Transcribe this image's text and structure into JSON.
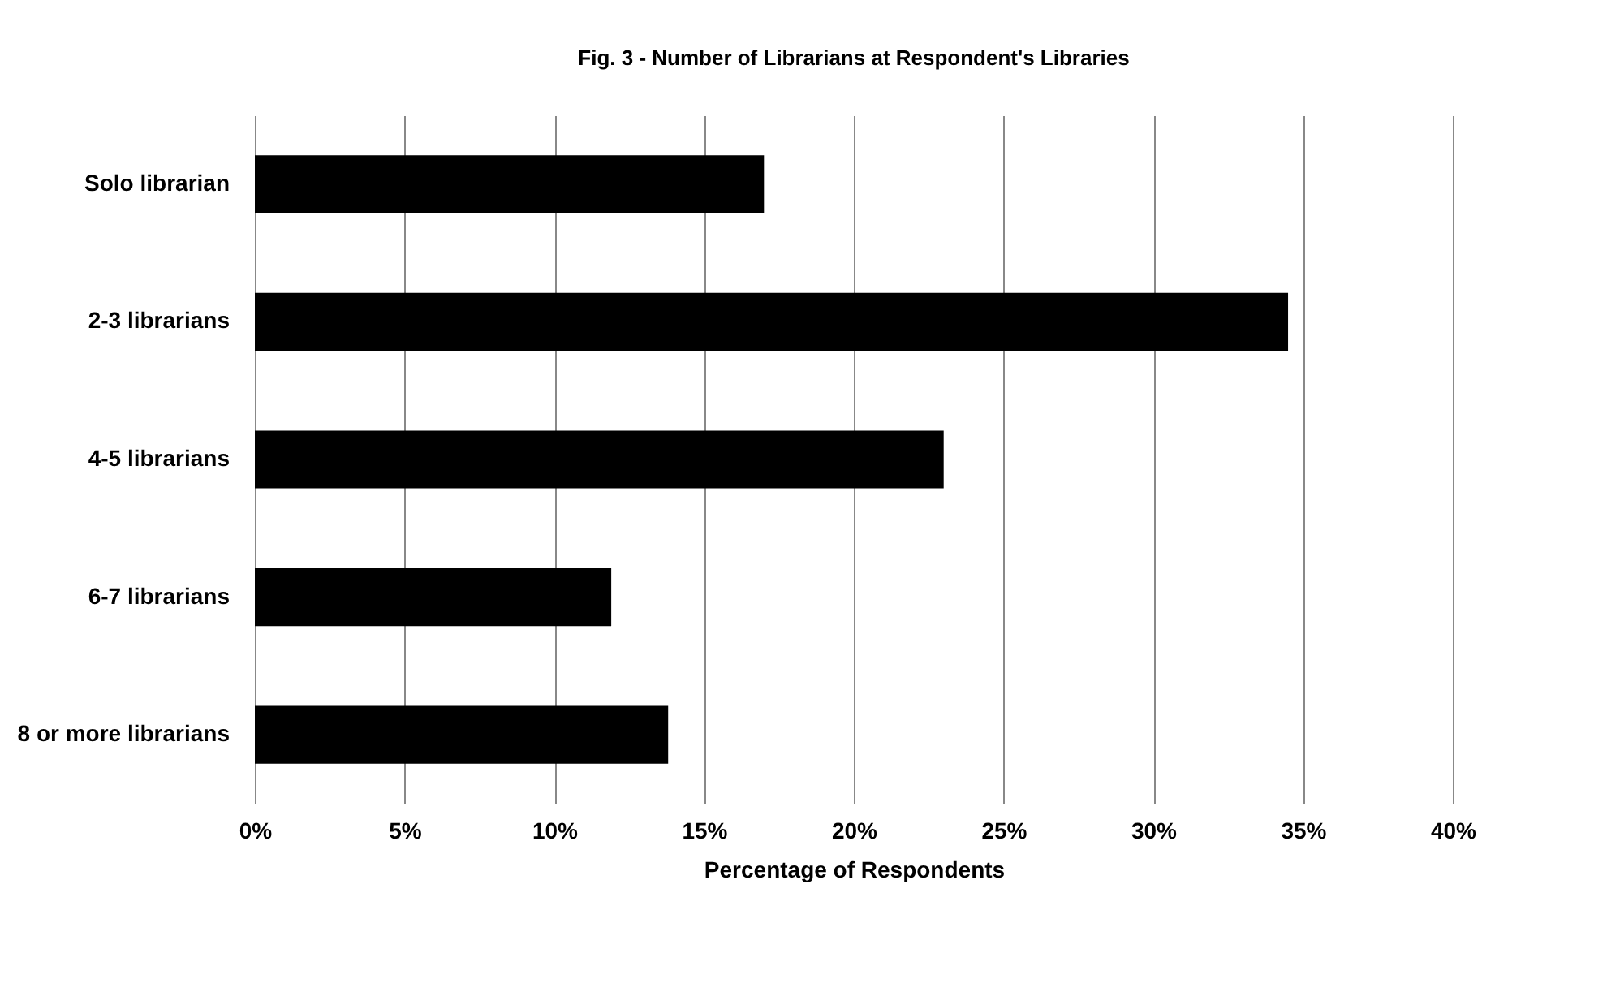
{
  "chart_data": {
    "type": "bar",
    "orientation": "horizontal",
    "title": "Fig. 3 -  Number of Librarians at Respondent's Libraries",
    "xlabel": "Percentage of Respondents",
    "categories": [
      "Solo librarian",
      "2-3 librarians",
      "4-5 librarians",
      "6-7 librarians",
      "8 or more librarians"
    ],
    "series": [
      {
        "color": "#000000",
        "values": [
          17.0,
          34.5,
          23.0,
          11.9,
          13.8
        ]
      }
    ],
    "xlim": [
      0,
      40
    ],
    "xticks": [
      {
        "value": 0,
        "label": "0%"
      },
      {
        "value": 5,
        "label": "5%"
      },
      {
        "value": 10,
        "label": "10%"
      },
      {
        "value": 15,
        "label": "15%"
      },
      {
        "value": 20,
        "label": "20%"
      },
      {
        "value": 25,
        "label": "25%"
      },
      {
        "value": 30,
        "label": "30%"
      },
      {
        "value": 35,
        "label": "35%"
      },
      {
        "value": 40,
        "label": "40%"
      }
    ],
    "grid": "x",
    "legend": false
  }
}
